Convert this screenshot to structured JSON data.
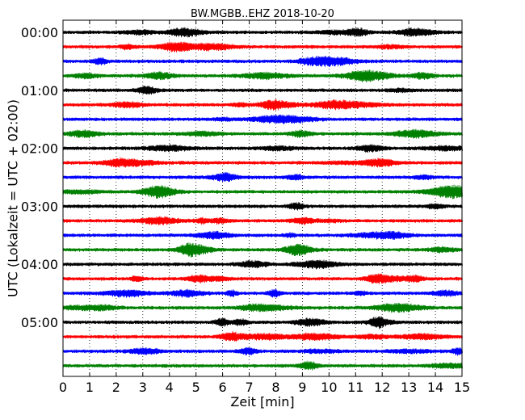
{
  "chart_data": {
    "type": "line",
    "title": "BW.MGBB..EHZ 2018-10-20",
    "xlabel": "Zeit  [min]",
    "ylabel": "UTC (Lokalzeit = UTC + 02:00)",
    "xlim": [
      0,
      15
    ],
    "x_ticks": [
      "0",
      "1",
      "2",
      "3",
      "4",
      "5",
      "6",
      "7",
      "8",
      "9",
      "10",
      "11",
      "12",
      "13",
      "14",
      "15"
    ],
    "y_ticks": [
      "00:00",
      "01:00",
      "02:00",
      "03:00",
      "04:00",
      "05:00"
    ],
    "grid": "vertical dotted lines at each minute",
    "trace_colors": [
      "#000000",
      "#ff0000",
      "#0000ff",
      "#008000"
    ],
    "traces": [
      {
        "start": "00:00",
        "color": "#000000"
      },
      {
        "start": "00:15",
        "color": "#ff0000"
      },
      {
        "start": "00:30",
        "color": "#0000ff"
      },
      {
        "start": "00:45",
        "color": "#008000"
      },
      {
        "start": "01:00",
        "color": "#000000"
      },
      {
        "start": "01:15",
        "color": "#ff0000"
      },
      {
        "start": "01:30",
        "color": "#0000ff"
      },
      {
        "start": "01:45",
        "color": "#008000"
      },
      {
        "start": "02:00",
        "color": "#000000"
      },
      {
        "start": "02:15",
        "color": "#ff0000"
      },
      {
        "start": "02:30",
        "color": "#0000ff"
      },
      {
        "start": "02:45",
        "color": "#008000"
      },
      {
        "start": "03:00",
        "color": "#000000"
      },
      {
        "start": "03:15",
        "color": "#ff0000"
      },
      {
        "start": "03:30",
        "color": "#0000ff"
      },
      {
        "start": "03:45",
        "color": "#008000"
      },
      {
        "start": "04:00",
        "color": "#000000"
      },
      {
        "start": "04:15",
        "color": "#ff0000"
      },
      {
        "start": "04:30",
        "color": "#0000ff"
      },
      {
        "start": "04:45",
        "color": "#008000"
      },
      {
        "start": "05:00",
        "color": "#000000"
      },
      {
        "start": "05:15",
        "color": "#ff0000"
      },
      {
        "start": "05:30",
        "color": "#0000ff"
      },
      {
        "start": "05:45",
        "color": "#008000"
      }
    ]
  }
}
